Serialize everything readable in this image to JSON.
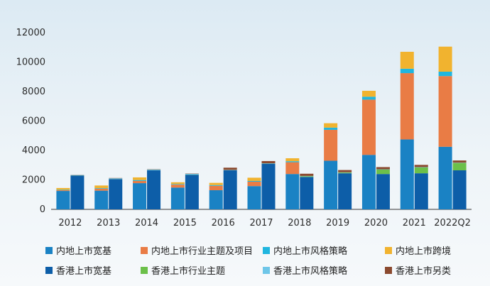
{
  "chart_data": {
    "type": "bar",
    "stacked": true,
    "grouped": true,
    "title": "",
    "xlabel": "",
    "ylabel": "",
    "ylim": [
      0,
      12000
    ],
    "yticks": [
      0,
      2000,
      4000,
      6000,
      8000,
      10000,
      12000
    ],
    "grid": false,
    "legend_position": "bottom",
    "categories": [
      "2012",
      "2013",
      "2014",
      "2015",
      "2016",
      "2017",
      "2018",
      "2019",
      "2020",
      "2021",
      "2022Q2"
    ],
    "groups": [
      {
        "name": "内地",
        "series": [
          {
            "name": "内地上市宽基",
            "color": "#1a82c4",
            "values": [
              1250,
              1270,
              1780,
              1480,
              1300,
              1580,
              2400,
              3300,
              3700,
              4750,
              4250
            ]
          },
          {
            "name": "内地上市行业主题及项目",
            "color": "#e97c45",
            "values": [
              50,
              130,
              150,
              200,
              300,
              300,
              800,
              2100,
              3750,
              4500,
              4800
            ]
          },
          {
            "name": "内地上市风格策略",
            "color": "#20b6df",
            "values": [
              30,
              40,
              60,
              40,
              50,
              50,
              70,
              150,
              200,
              300,
              300
            ]
          },
          {
            "name": "内地上市跨境",
            "color": "#f1b32f",
            "values": [
              120,
              180,
              180,
              120,
              150,
              220,
              200,
              300,
              400,
              1150,
              1700
            ]
          }
        ]
      },
      {
        "name": "香港",
        "series": [
          {
            "name": "香港上市宽基",
            "color": "#0d5ea8",
            "values": [
              2300,
              2050,
              2650,
              2350,
              2650,
              3100,
              2200,
              2450,
              2400,
              2450,
              2650
            ]
          },
          {
            "name": "香港上市行业主题",
            "color": "#6cc04a",
            "values": [
              10,
              10,
              10,
              10,
              10,
              10,
              50,
              50,
              300,
              400,
              500
            ]
          },
          {
            "name": "香港上市风格策略",
            "color": "#6ec6e8",
            "values": [
              20,
              50,
              50,
              50,
              20,
              20,
              20,
              20,
              20,
              20,
              20
            ]
          },
          {
            "name": "香港上市另类",
            "color": "#8b4a2f",
            "values": [
              10,
              20,
              20,
              20,
              150,
              150,
              150,
              150,
              150,
              150,
              150
            ]
          }
        ]
      }
    ],
    "legend": [
      "内地上市宽基",
      "内地上市行业主题及项目",
      "内地上市风格策略",
      "内地上市跨境",
      "香港上市宽基",
      "香港上市行业主题",
      "香港上市风格策略",
      "香港上市另类"
    ]
  }
}
